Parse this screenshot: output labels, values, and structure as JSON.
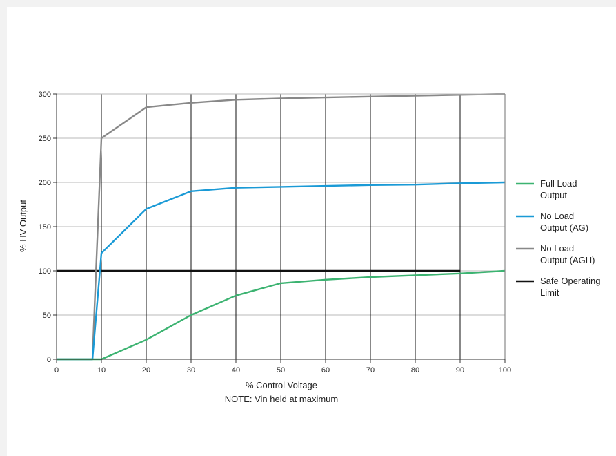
{
  "chart_data": {
    "type": "line",
    "xlabel": "% Control Voltage",
    "note": "NOTE: Vin held at maximum",
    "ylabel": "% HV Output",
    "xlim": [
      0,
      100
    ],
    "ylim": [
      0,
      300
    ],
    "xticks": [
      0,
      10,
      20,
      30,
      40,
      50,
      60,
      70,
      80,
      90,
      100
    ],
    "yticks": [
      0,
      50,
      100,
      150,
      200,
      250,
      300
    ],
    "grid": "vertical lines at each x tick, horizontal lines at each y tick",
    "legend_position": "right",
    "series": [
      {
        "name_lines": [
          "Full Load",
          "Output"
        ],
        "color": "#3cb371",
        "points": [
          [
            0,
            0
          ],
          [
            8,
            0
          ],
          [
            10,
            0
          ],
          [
            20,
            22
          ],
          [
            30,
            50
          ],
          [
            40,
            72
          ],
          [
            50,
            86
          ],
          [
            60,
            90
          ],
          [
            70,
            93
          ],
          [
            80,
            95
          ],
          [
            90,
            97
          ],
          [
            100,
            100
          ]
        ]
      },
      {
        "name_lines": [
          "No Load",
          "Output (AG)"
        ],
        "color": "#1a9ad6",
        "points": [
          [
            0,
            0
          ],
          [
            8,
            0
          ],
          [
            10,
            120
          ],
          [
            20,
            170
          ],
          [
            30,
            190
          ],
          [
            40,
            194
          ],
          [
            50,
            195
          ],
          [
            60,
            196
          ],
          [
            70,
            197
          ],
          [
            80,
            197.5
          ],
          [
            90,
            199
          ],
          [
            100,
            200
          ]
        ]
      },
      {
        "name_lines": [
          "No Load",
          "Output (AGH)"
        ],
        "color": "#888888",
        "points": [
          [
            0,
            0
          ],
          [
            8,
            0
          ],
          [
            10,
            250
          ],
          [
            20,
            285
          ],
          [
            30,
            290
          ],
          [
            40,
            293.5
          ],
          [
            50,
            295
          ],
          [
            60,
            296
          ],
          [
            70,
            297
          ],
          [
            80,
            298
          ],
          [
            90,
            299
          ],
          [
            100,
            300
          ]
        ]
      },
      {
        "name_lines": [
          "Safe Operating",
          "Limit"
        ],
        "color": "#111111",
        "points": [
          [
            0,
            100
          ],
          [
            90,
            100
          ]
        ]
      }
    ]
  }
}
